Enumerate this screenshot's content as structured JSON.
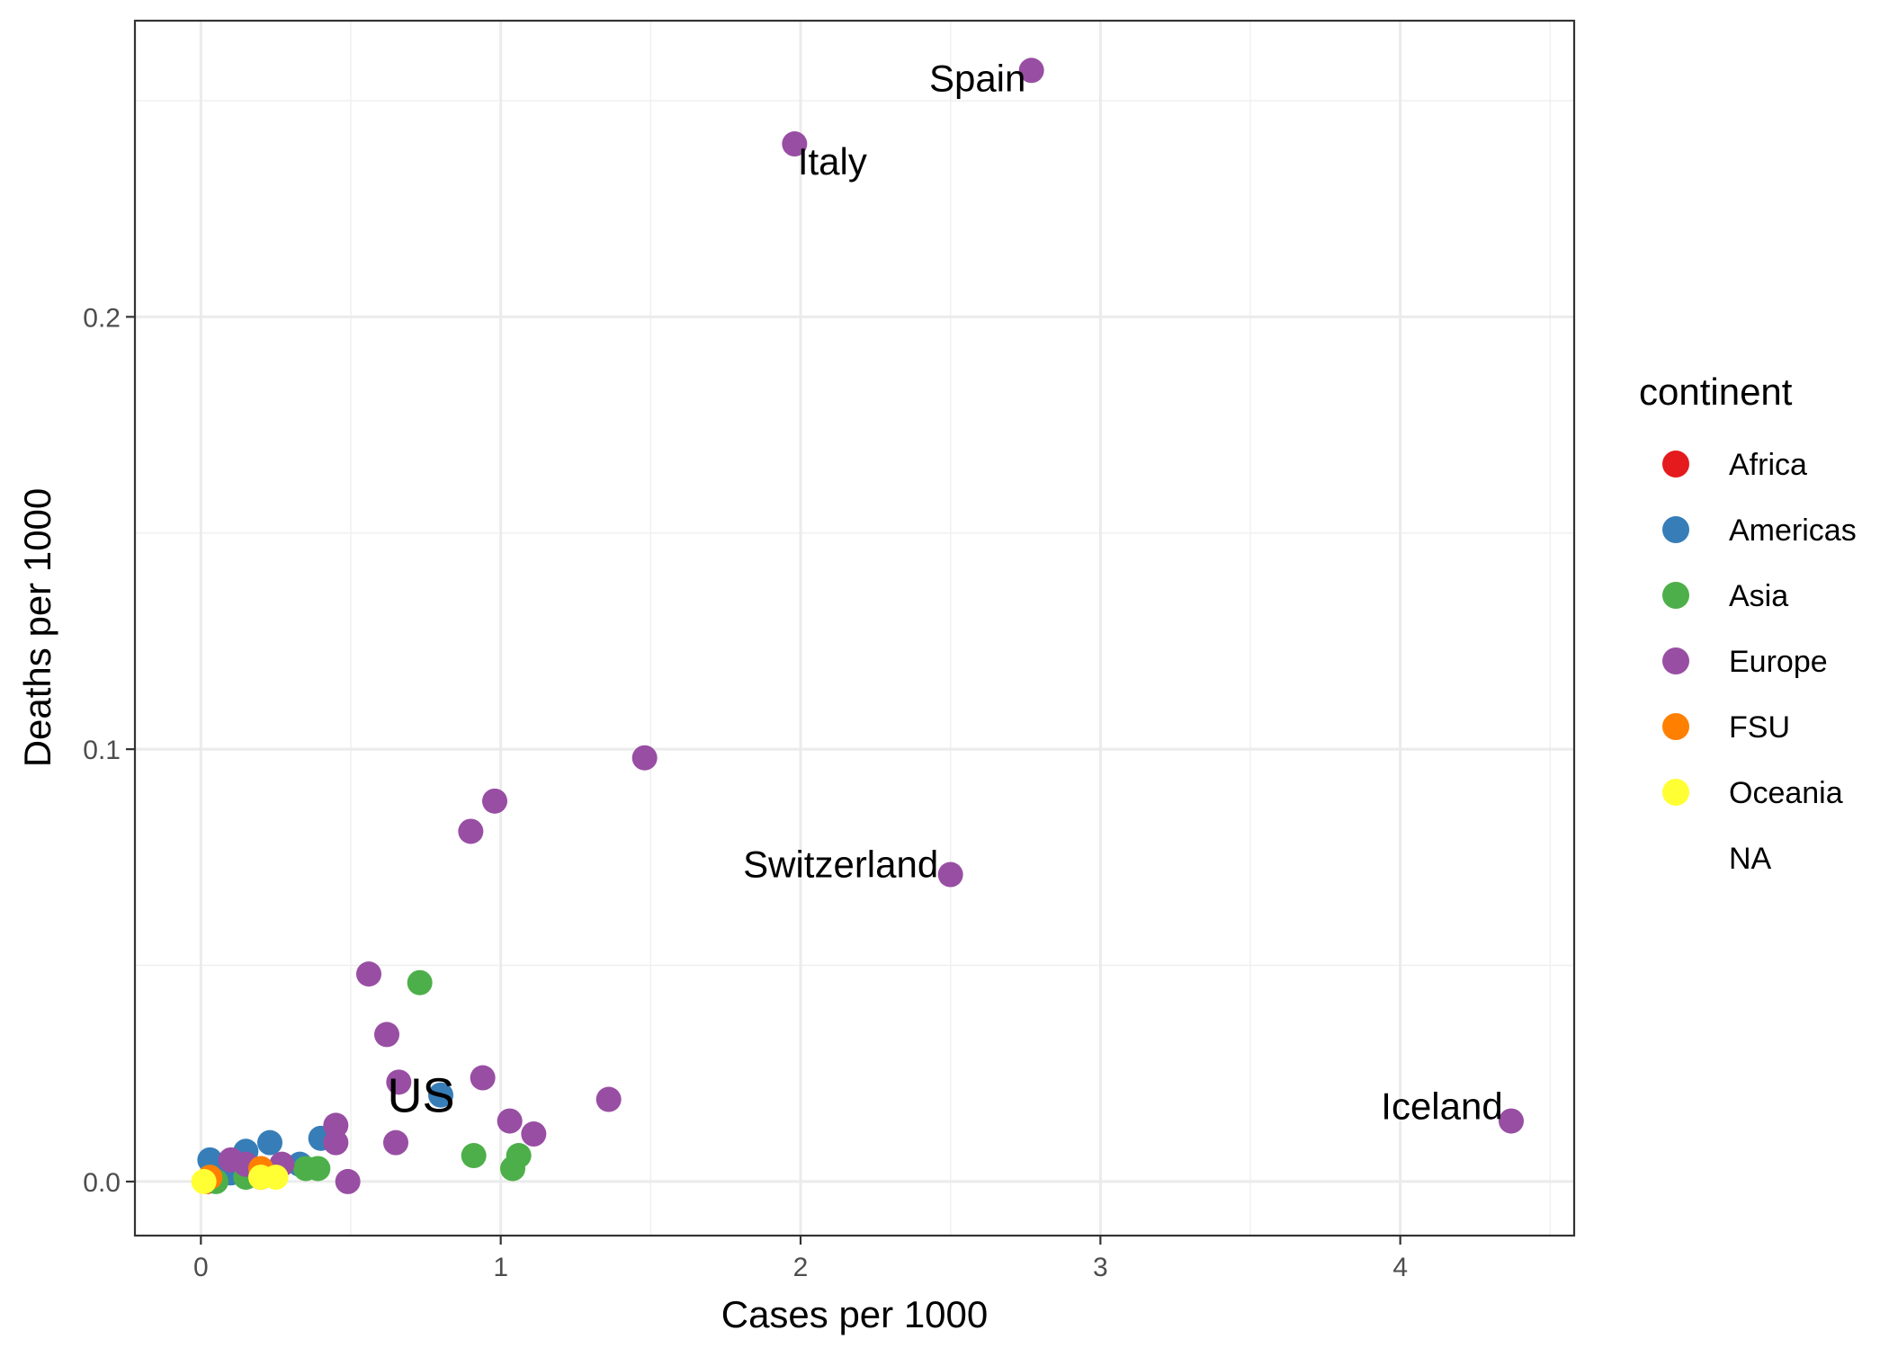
{
  "chart_data": {
    "type": "scatter",
    "xlabel": "Cases per 1000",
    "ylabel": "Deaths per 1000",
    "xlim": [
      -0.22,
      4.58
    ],
    "ylim": [
      -0.0125,
      0.2685
    ],
    "x_ticks": [
      0,
      1,
      2,
      3,
      4
    ],
    "x_tick_labels": [
      "0",
      "1",
      "2",
      "3",
      "4"
    ],
    "y_ticks": [
      0.0,
      0.1,
      0.2
    ],
    "y_tick_labels": [
      "0.0",
      "0.1",
      "0.2"
    ],
    "grid": true,
    "legend": {
      "title": "continent",
      "position": "right",
      "entries": [
        {
          "name": "Africa",
          "color": "#E41A1C"
        },
        {
          "name": "Americas",
          "color": "#377EB8"
        },
        {
          "name": "Asia",
          "color": "#4DAF4A"
        },
        {
          "name": "Europe",
          "color": "#984EA3"
        },
        {
          "name": "FSU",
          "color": "#FF7F00"
        },
        {
          "name": "Oceania",
          "color": "#FFFF33"
        },
        {
          "name": "NA",
          "color": "#FFFFFF"
        }
      ]
    },
    "series": [
      {
        "name": "Africa",
        "color": "#E41A1C",
        "points": [
          [
            0.02,
            0.0
          ],
          [
            0.05,
            0.001
          ],
          [
            0.2,
            0.001
          ]
        ]
      },
      {
        "name": "Americas",
        "color": "#377EB8",
        "points": [
          [
            0.03,
            0.005
          ],
          [
            0.1,
            0.002
          ],
          [
            0.15,
            0.007
          ],
          [
            0.23,
            0.009
          ],
          [
            0.33,
            0.004
          ],
          [
            0.4,
            0.01
          ],
          [
            0.8,
            0.02
          ]
        ]
      },
      {
        "name": "Asia",
        "color": "#4DAF4A",
        "points": [
          [
            0.05,
            0.0
          ],
          [
            0.15,
            0.001
          ],
          [
            0.35,
            0.003
          ],
          [
            0.39,
            0.003
          ],
          [
            0.73,
            0.046
          ],
          [
            0.91,
            0.006
          ],
          [
            1.04,
            0.003
          ],
          [
            1.06,
            0.006
          ]
        ]
      },
      {
        "name": "Europe",
        "color": "#984EA3",
        "points": [
          [
            1.98,
            0.24
          ],
          [
            2.77,
            0.257
          ],
          [
            0.9,
            0.081
          ],
          [
            0.98,
            0.088
          ],
          [
            1.48,
            0.098
          ],
          [
            2.5,
            0.071
          ],
          [
            4.37,
            0.014
          ],
          [
            0.56,
            0.048
          ],
          [
            0.62,
            0.034
          ],
          [
            0.66,
            0.023
          ],
          [
            0.94,
            0.024
          ],
          [
            1.36,
            0.019
          ],
          [
            1.03,
            0.014
          ],
          [
            1.11,
            0.011
          ],
          [
            0.45,
            0.013
          ],
          [
            0.45,
            0.009
          ],
          [
            0.65,
            0.009
          ],
          [
            0.49,
            0.0
          ],
          [
            0.1,
            0.005
          ],
          [
            0.15,
            0.004
          ],
          [
            0.22,
            0.002
          ],
          [
            0.27,
            0.004
          ]
        ]
      },
      {
        "name": "FSU",
        "color": "#FF7F00",
        "points": [
          [
            0.03,
            0.001
          ],
          [
            0.2,
            0.003
          ]
        ]
      },
      {
        "name": "Oceania",
        "color": "#FFFF33",
        "points": [
          [
            0.01,
            0.0
          ],
          [
            0.2,
            0.001
          ],
          [
            0.25,
            0.001
          ]
        ]
      }
    ],
    "annotations": [
      {
        "text": "Spain",
        "x": 2.77,
        "y": 0.257
      },
      {
        "text": "Italy",
        "x": 1.98,
        "y": 0.24
      },
      {
        "text": "Switzerland",
        "x": 2.5,
        "y": 0.071
      },
      {
        "text": "Iceland",
        "x": 4.37,
        "y": 0.014
      },
      {
        "text": "US",
        "x": 0.8,
        "y": 0.02
      }
    ]
  }
}
